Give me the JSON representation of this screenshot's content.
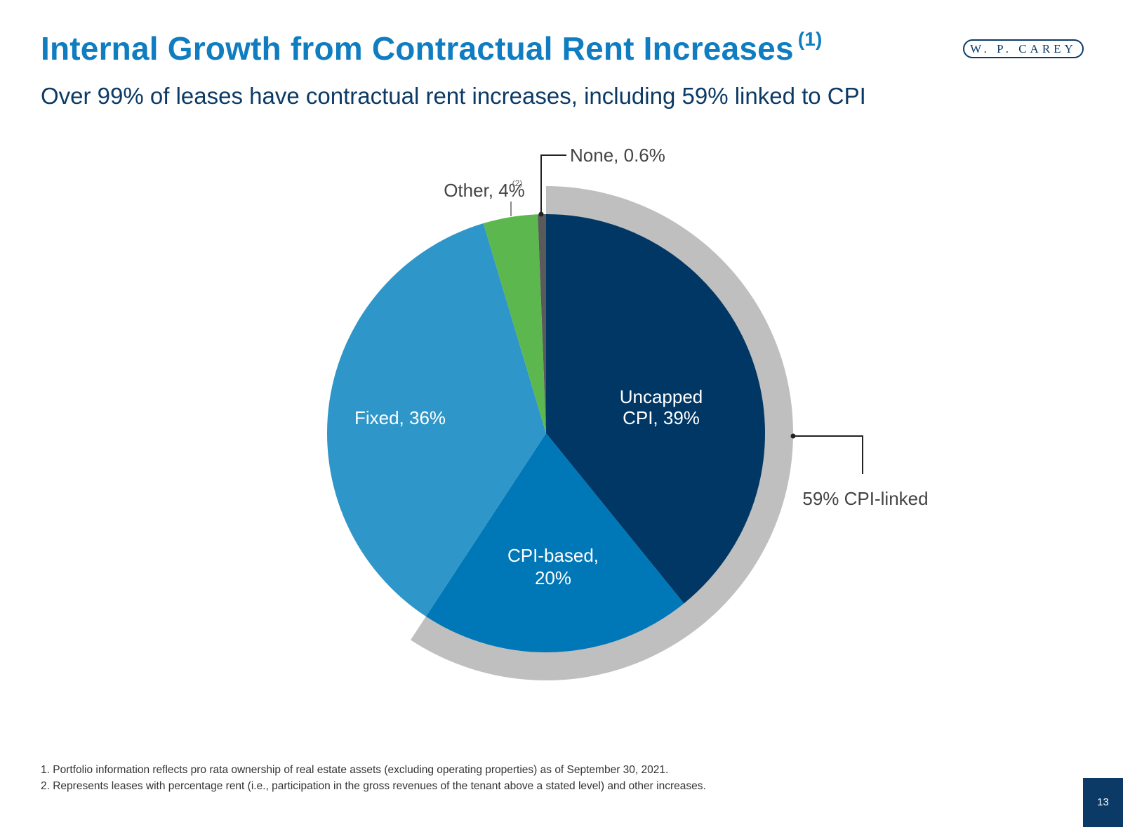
{
  "header": {
    "title": "Internal Growth from Contractual Rent Increases",
    "title_note": "(1)",
    "subtitle": "Over 99% of leases have contractual rent increases, including 59% linked to CPI",
    "logo_text": "W. P. CAREY"
  },
  "chart_data": {
    "type": "pie",
    "start_angle_deg": 0,
    "direction": "clockwise",
    "slices": [
      {
        "name": "Uncapped CPI",
        "label_line1": "Uncapped",
        "label_line2": "CPI, 39%",
        "value": 39,
        "color": "#003764"
      },
      {
        "name": "CPI-based",
        "label_line1": "CPI-based,",
        "label_line2": "20%",
        "value": 20,
        "color": "#0077b6"
      },
      {
        "name": "Fixed",
        "label_line1": "Fixed, 36%",
        "label_line2": "",
        "value": 36,
        "color": "#2e96c8"
      },
      {
        "name": "Other",
        "label_line1": "Other, 4%",
        "label_note": "(2)",
        "value": 4,
        "color": "#5cb84e"
      },
      {
        "name": "None",
        "label_line1": "None, 0.6%",
        "value": 0.6,
        "color": "#5a5a5a"
      }
    ],
    "highlight": {
      "label": "59% CPI-linked",
      "covers": [
        "Uncapped CPI",
        "CPI-based"
      ],
      "color": "#bfbfbf"
    }
  },
  "footnotes": [
    "1.  Portfolio information reflects pro rata ownership of real estate assets (excluding operating properties) as of September 30, 2021.",
    "2.  Represents leases with percentage rent (i.e., participation in the gross revenues of the tenant above a stated level) and other increases."
  ],
  "page_number": "13"
}
